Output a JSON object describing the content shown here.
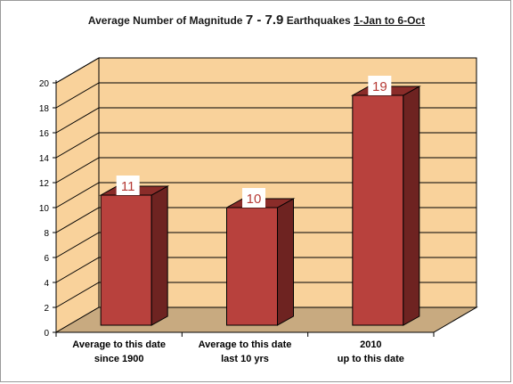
{
  "chart_data": {
    "type": "bar",
    "title": {
      "part1": "Average Number of Magnitude ",
      "magnitude": "7 - 7.9",
      "part2": " Earthquakes ",
      "period": "1-Jan to 6-Oct"
    },
    "categories": [
      [
        "Average to this date",
        "since 1900"
      ],
      [
        "Average to this date",
        "last 10 yrs"
      ],
      [
        "2010",
        "up to this date"
      ]
    ],
    "values": [
      11,
      10,
      19
    ],
    "data_labels": [
      "11",
      "10",
      "19"
    ],
    "xlabel": "",
    "ylabel": "",
    "ylim": [
      0,
      20
    ],
    "yticks": [
      0,
      2,
      4,
      6,
      8,
      10,
      12,
      14,
      16,
      18,
      20
    ],
    "grid": true,
    "legend": "none",
    "style": "3d-column"
  },
  "colors": {
    "wall": "#f9d29b",
    "floor": "#c8aa80",
    "bar_front": "#b8413d",
    "bar_side": "#6e2321",
    "bar_top": "#8a2c29",
    "gridline": "#000000",
    "data_label_text": "#b63b36",
    "data_label_bg": "#ffffff"
  }
}
